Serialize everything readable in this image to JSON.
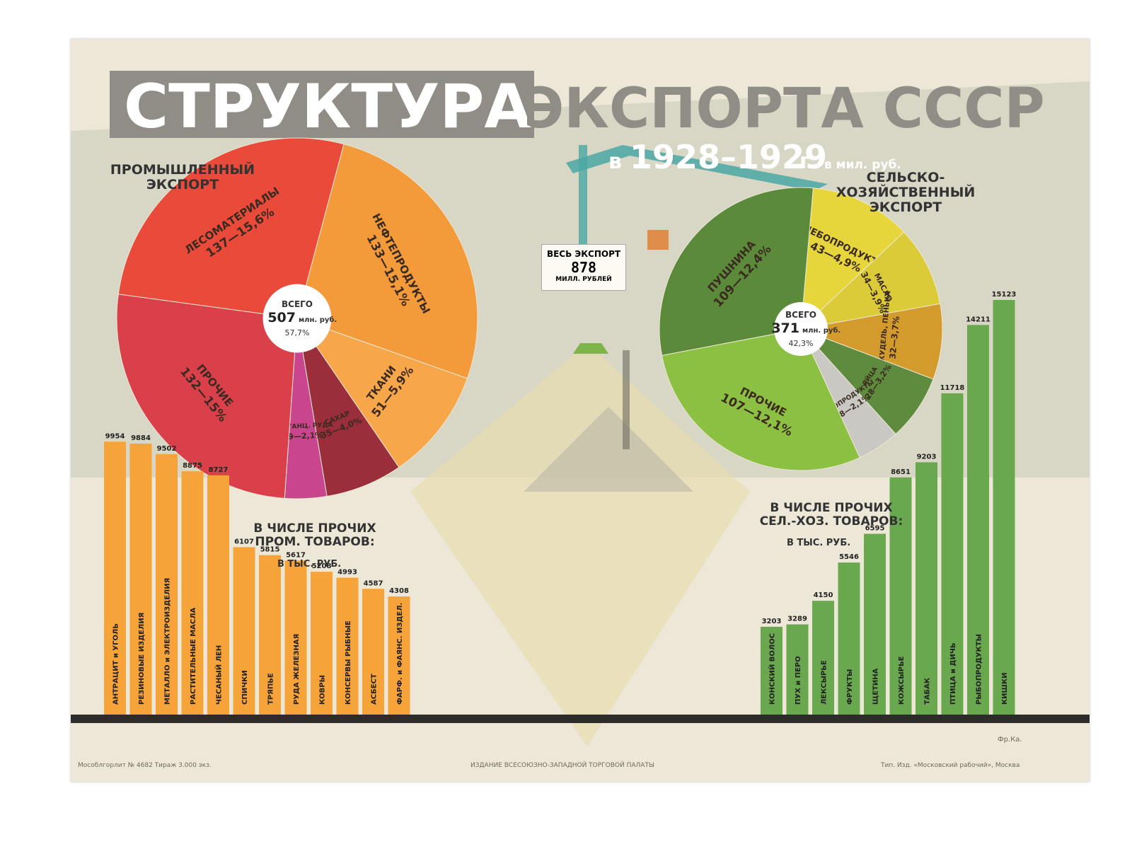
{
  "title": {
    "line1_a": "СТРУКТУРА",
    "line1_b": "ЭКСПОРТА СССР",
    "line2_prefix": "в",
    "line2_years": "1928–1929",
    "line2_suffix": "г.",
    "unit": "в мил. руб."
  },
  "headers": {
    "industrial": "ПРОМЫШЛЕННЫЙ ЭКСПОРТ",
    "agricultural": "СЕЛЬСКО-ХОЗЯЙСТВЕННЫЙ ЭКСПОРТ"
  },
  "total_box": {
    "label": "ВЕСЬ ЭКСПОРТ",
    "value": "878",
    "unit": "МИЛЛ. РУБЛЕЙ"
  },
  "section_labels": {
    "industrial_other_title": "В ЧИСЛЕ ПРОЧИХ ПРОМ. ТОВАРОВ:",
    "industrial_other_unit": "В ТЫС. РУБ.",
    "agri_other_title": "В ЧИСЛЕ ПРОЧИХ СЕЛ.-ХОЗ. ТОВАРОВ:",
    "agri_other_unit": "В ТЫС. РУБ."
  },
  "footer": {
    "left": "Мособлгорлит № 4682 Тираж 3.000 экз.",
    "center": "ИЗДАНИЕ ВСЕСОЮЗНО-ЗАПАДНОЙ ТОРГОВОЙ ПАЛАТЫ",
    "right": "Тип. Изд. «Московский рабочий», Москва",
    "signature": "Фр.Ка."
  },
  "colors": {
    "title_gray": "#8f8d86",
    "bar_orange": "#f6a33a",
    "bar_green": "#6aa84f",
    "base_dark": "#2e2c2a"
  },
  "chart_data": [
    {
      "type": "pie",
      "center_label": "ВСЕГО",
      "center_value": "507",
      "center_unit": "млн. руб.",
      "center_share": "57,7%",
      "slices": [
        {
          "name": "НЕФТЕПРОДУКТЫ",
          "value": 133,
          "pct": "15,1%",
          "color": "#f39a3a"
        },
        {
          "name": "ТКАНИ",
          "value": 51,
          "pct": "5,9%",
          "color": "#f7a64a"
        },
        {
          "name": "САХАР",
          "value": 35,
          "pct": "4,0%",
          "color": "#9a2e3a"
        },
        {
          "name": "МАРГАНЦ. РУДА",
          "value": 19,
          "pct": "2,1%",
          "color": "#c9468e"
        },
        {
          "name": "ПРОЧИЕ",
          "value": 132,
          "pct": "15%",
          "color": "#d9404a"
        },
        {
          "name": "ЛЕСОМАТЕРИАЛЫ",
          "value": 137,
          "pct": "15,6%",
          "color": "#e94a3a"
        }
      ]
    },
    {
      "type": "pie",
      "center_label": "ВСЕГО",
      "center_value": "371",
      "center_unit": "млн. руб.",
      "center_share": "42,3%",
      "slices": [
        {
          "name": "ХЛЕБОПРОДУКТЫ",
          "value": 43,
          "pct": "4,9%",
          "color": "#e6d53b"
        },
        {
          "name": "МАСЛО",
          "value": 34,
          "pct": "3,9%",
          "color": "#dccb38"
        },
        {
          "name": "ЛЕН, КУДЕЛЬ, ПЕНЬКА",
          "value": 32,
          "pct": "3,7%",
          "color": "#d39a2c"
        },
        {
          "name": "ЯЙЦА",
          "value": 28,
          "pct": "3,2%",
          "color": "#5e8b3d"
        },
        {
          "name": "МЯСОПРОДУКТЫ",
          "value": 18,
          "pct": "2,1%",
          "color": "#c9c8c2"
        },
        {
          "name": "ПРОЧИЕ",
          "value": 107,
          "pct": "12,1%",
          "color": "#8cc043"
        },
        {
          "name": "ПУШНИНА",
          "value": 109,
          "pct": "12,4%",
          "color": "#5b8a3a"
        }
      ]
    },
    {
      "type": "bar",
      "categories": [
        "АНТРАЦИТ и УГОЛЬ",
        "РЕЗИНОВЫЕ ИЗДЕЛИЯ",
        "МЕТАЛЛО и ЭЛЕКТРОИЗДЕЛИЯ",
        "РАСТИТЕЛЬНЫЕ МАСЛА",
        "ЧЕСАНЫЙ ЛЕН",
        "СПИЧКИ",
        "ТРЯПЬЕ",
        "РУДА ЖЕЛЕЗНАЯ",
        "КОВРЫ",
        "КОНСЕРВЫ РЫБНЫЕ",
        "АСБЕСТ",
        "ФАРФ. и ФАЯНС. ИЗДЕЛ."
      ],
      "values": [
        9954,
        9884,
        9502,
        8875,
        8727,
        6107,
        5815,
        5617,
        5208,
        4993,
        4587,
        4308
      ],
      "ylim": [
        0,
        16000
      ]
    },
    {
      "type": "bar",
      "categories": [
        "КОНСКИЙ ВОЛОС",
        "ПУХ и ПЕРО",
        "ЛЕКСЫРЬЕ",
        "ФРУКТЫ",
        "ЩЕТИНА",
        "КОЖСЫРЬЕ",
        "ТАБАК",
        "ПТИЦА и ДИЧЬ",
        "РЫБОПРОДУКТЫ",
        "КИШКИ"
      ],
      "values": [
        3203,
        3289,
        4150,
        5546,
        6595,
        8651,
        9203,
        11718,
        14211,
        15123
      ],
      "ylim": [
        0,
        16000
      ]
    }
  ]
}
